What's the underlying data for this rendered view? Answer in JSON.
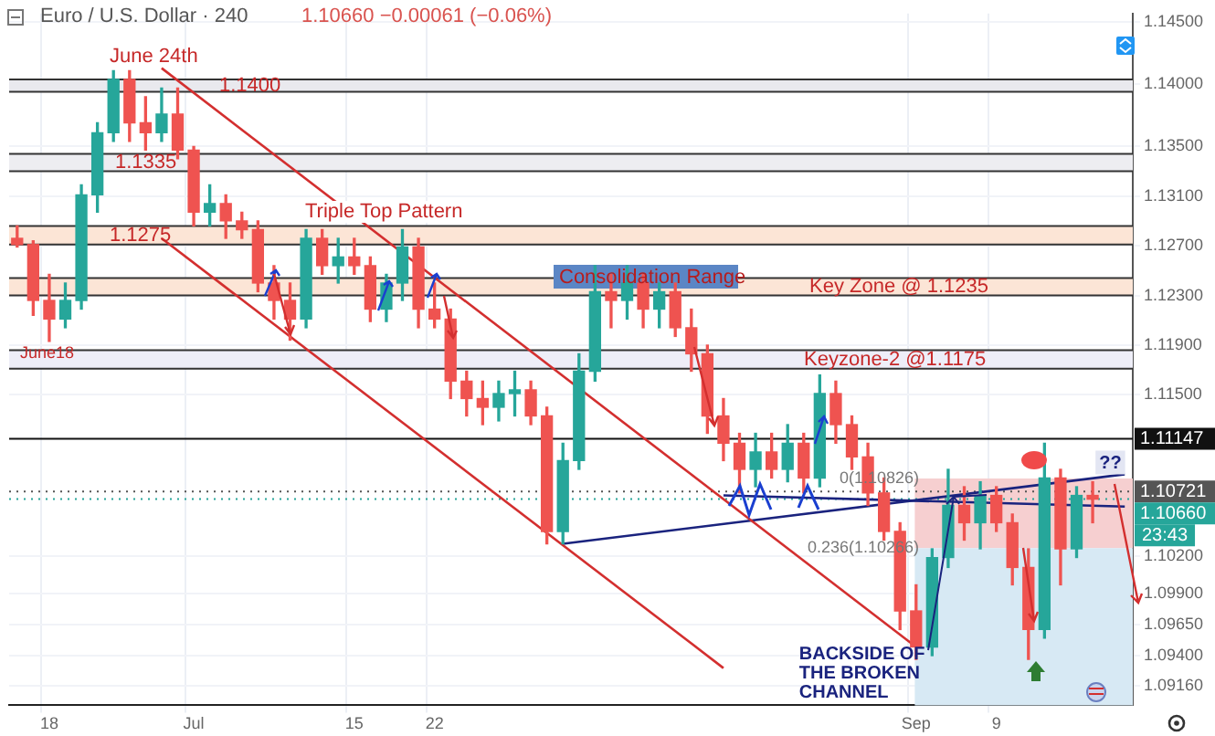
{
  "chart_data": {
    "type": "candlestick",
    "title": "Euro / U.S. Dollar · 240",
    "subtitle": "1.10660 −0.00061 (−0.06%)",
    "categories": [
      null,
      null,
      "18",
      null,
      null,
      null,
      null,
      null,
      null,
      null,
      null,
      "Jul",
      null,
      null,
      null,
      null,
      null,
      null,
      null,
      null,
      null,
      "15",
      null,
      null,
      null,
      null,
      "22",
      null,
      null,
      null,
      null,
      null,
      null,
      null,
      null,
      null,
      null,
      null,
      null,
      null,
      null,
      null,
      null,
      null,
      null,
      null,
      null,
      null,
      null,
      null,
      null,
      null,
      null,
      null,
      null,
      null,
      "Sep",
      null,
      null,
      null,
      null,
      "9",
      null,
      null,
      null,
      null,
      null,
      null,
      null,
      null
    ],
    "ohlc": [
      [
        1.1276,
        1.1286,
        1.1269,
        1.1271
      ],
      [
        1.1271,
        1.1274,
        1.1214,
        1.1226
      ],
      [
        1.1226,
        1.1247,
        1.1193,
        1.1211
      ],
      [
        1.1211,
        1.124,
        1.1204,
        1.1226
      ],
      [
        1.1226,
        1.1319,
        1.1219,
        1.1311
      ],
      [
        1.1311,
        1.1369,
        1.1297,
        1.1361
      ],
      [
        1.1361,
        1.1411,
        1.1354,
        1.1404
      ],
      [
        1.1404,
        1.1411,
        1.1354,
        1.1369
      ],
      [
        1.1369,
        1.139,
        1.1347,
        1.1361
      ],
      [
        1.1361,
        1.1397,
        1.1354,
        1.1376
      ],
      [
        1.1376,
        1.1397,
        1.134,
        1.1347
      ],
      [
        1.1347,
        1.135,
        1.1286,
        1.1297
      ],
      [
        1.1297,
        1.1319,
        1.1286,
        1.1304
      ],
      [
        1.1304,
        1.1311,
        1.1276,
        1.129
      ],
      [
        1.129,
        1.1297,
        1.1276,
        1.1283
      ],
      [
        1.1283,
        1.129,
        1.1233,
        1.124
      ],
      [
        1.124,
        1.1254,
        1.1211,
        1.1226
      ],
      [
        1.1226,
        1.124,
        1.1194,
        1.1211
      ],
      [
        1.1211,
        1.1283,
        1.1204,
        1.1276
      ],
      [
        1.1276,
        1.1283,
        1.1247,
        1.1254
      ],
      [
        1.1254,
        1.1276,
        1.124,
        1.1261
      ],
      [
        1.1261,
        1.1276,
        1.1247,
        1.1254
      ],
      [
        1.1254,
        1.1261,
        1.1209,
        1.1219
      ],
      [
        1.1219,
        1.1247,
        1.1209,
        1.124
      ],
      [
        1.124,
        1.1283,
        1.1226,
        1.1269
      ],
      [
        1.1269,
        1.1276,
        1.1204,
        1.1219
      ],
      [
        1.1219,
        1.124,
        1.1204,
        1.1211
      ],
      [
        1.1211,
        1.1219,
        1.1147,
        1.1161
      ],
      [
        1.1161,
        1.1169,
        1.1133,
        1.1147
      ],
      [
        1.1147,
        1.1161,
        1.1126,
        1.114
      ],
      [
        1.114,
        1.1161,
        1.1129,
        1.1151
      ],
      [
        1.1151,
        1.1169,
        1.1133,
        1.1154
      ],
      [
        1.1154,
        1.1161,
        1.1126,
        1.1133
      ],
      [
        1.1133,
        1.114,
        1.103,
        1.104
      ],
      [
        1.104,
        1.1111,
        1.103,
        1.1097
      ],
      [
        1.1097,
        1.1183,
        1.109,
        1.1169
      ],
      [
        1.1169,
        1.1254,
        1.1161,
        1.1233
      ],
      [
        1.1233,
        1.1247,
        1.1204,
        1.1226
      ],
      [
        1.1226,
        1.1254,
        1.1211,
        1.124
      ],
      [
        1.124,
        1.1247,
        1.1204,
        1.1219
      ],
      [
        1.1219,
        1.124,
        1.1204,
        1.1233
      ],
      [
        1.1233,
        1.124,
        1.1197,
        1.1204
      ],
      [
        1.1204,
        1.1219,
        1.1169,
        1.1183
      ],
      [
        1.1183,
        1.119,
        1.1119,
        1.1133
      ],
      [
        1.1133,
        1.1147,
        1.1097,
        1.1111
      ],
      [
        1.1111,
        1.1119,
        1.1071,
        1.109
      ],
      [
        1.109,
        1.1119,
        1.1076,
        1.1104
      ],
      [
        1.1104,
        1.1119,
        1.1083,
        1.109
      ],
      [
        1.109,
        1.1126,
        1.108,
        1.1111
      ],
      [
        1.1111,
        1.1119,
        1.1071,
        1.1083
      ],
      [
        1.1083,
        1.1166,
        1.1076,
        1.1151
      ],
      [
        1.1151,
        1.1161,
        1.1111,
        1.1126
      ],
      [
        1.1126,
        1.1133,
        1.109,
        1.11
      ],
      [
        1.11,
        1.1111,
        1.1061,
        1.1071
      ],
      [
        1.1071,
        1.1083,
        1.1033,
        1.104
      ],
      [
        1.104,
        1.1047,
        1.0961,
        1.0976
      ],
      [
        1.0976,
        1.0997,
        1.0937,
        1.0947
      ],
      [
        1.0947,
        1.1026,
        1.094,
        1.1019
      ],
      [
        1.1019,
        1.109,
        1.1011,
        1.1061
      ],
      [
        1.1061,
        1.1076,
        1.1033,
        1.1047
      ],
      [
        1.1047,
        1.108,
        1.1026,
        1.1069
      ],
      [
        1.1069,
        1.1076,
        1.104,
        1.1047
      ],
      [
        1.1047,
        1.1054,
        1.0997,
        1.1011
      ],
      [
        1.1011,
        1.1026,
        1.0937,
        1.0961
      ],
      [
        1.0961,
        1.1111,
        1.0954,
        1.1083
      ],
      [
        1.1083,
        1.109,
        1.0997,
        1.1026
      ],
      [
        1.1026,
        1.1076,
        1.1019,
        1.1069
      ],
      [
        1.1069,
        1.108,
        1.1047,
        1.1066
      ],
      null,
      null
    ],
    "series": [
      {
        "type": "line",
        "color": "#d32f2f",
        "values": [
          null,
          null,
          null,
          null,
          null,
          null,
          null,
          null,
          null,
          1.1413,
          null,
          null,
          null,
          null,
          null,
          null,
          null,
          null,
          null,
          null,
          null,
          null,
          null,
          null,
          null,
          null,
          null,
          null,
          null,
          null,
          null,
          null,
          null,
          null,
          null,
          null,
          null,
          null,
          null,
          null,
          null,
          null,
          null,
          null,
          null,
          null,
          null,
          null,
          null,
          null,
          null,
          null,
          null,
          null,
          null,
          null,
          1.0947,
          null,
          null,
          null,
          null,
          null,
          null,
          null,
          null,
          null,
          null,
          null,
          null,
          null
        ]
      },
      {
        "type": "line",
        "color": "#d32f2f",
        "values": [
          null,
          null,
          null,
          null,
          null,
          null,
          null,
          null,
          null,
          1.1276,
          null,
          null,
          null,
          null,
          null,
          null,
          null,
          null,
          null,
          null,
          null,
          null,
          null,
          null,
          null,
          null,
          null,
          null,
          null,
          null,
          null,
          null,
          null,
          null,
          null,
          null,
          null,
          null,
          null,
          null,
          null,
          null,
          null,
          null,
          1.093,
          null,
          null,
          null,
          null,
          null,
          null,
          null,
          null,
          null,
          null,
          null,
          null,
          null,
          null,
          null,
          null,
          null,
          null,
          null,
          null,
          null,
          null,
          null,
          null,
          null
        ]
      },
      {
        "type": "line",
        "color": "#1a237e",
        "values": [
          null,
          null,
          null,
          null,
          null,
          null,
          null,
          null,
          null,
          null,
          null,
          null,
          null,
          null,
          null,
          null,
          null,
          null,
          null,
          null,
          null,
          null,
          null,
          null,
          null,
          null,
          null,
          null,
          null,
          null,
          null,
          null,
          null,
          null,
          1.103,
          null,
          null,
          null,
          null,
          null,
          null,
          null,
          null,
          null,
          null,
          null,
          null,
          null,
          null,
          null,
          null,
          null,
          null,
          null,
          null,
          null,
          null,
          null,
          null,
          null,
          null,
          null,
          null,
          null,
          null,
          null,
          null,
          null,
          null,
          1.1086
        ]
      },
      {
        "type": "line",
        "color": "#1a237e",
        "values": [
          null,
          null,
          null,
          null,
          null,
          null,
          null,
          null,
          null,
          null,
          null,
          null,
          null,
          null,
          null,
          null,
          null,
          null,
          null,
          null,
          null,
          null,
          null,
          null,
          null,
          null,
          null,
          null,
          null,
          null,
          null,
          null,
          null,
          null,
          null,
          null,
          null,
          null,
          null,
          null,
          null,
          null,
          null,
          null,
          1.1069,
          null,
          null,
          null,
          null,
          null,
          null,
          null,
          null,
          null,
          null,
          null,
          null,
          null,
          null,
          null,
          null,
          null,
          null,
          null,
          null,
          null,
          null,
          null,
          null,
          1.106
        ]
      }
    ],
    "ylim": [
      1.09,
      1.1457
    ],
    "yticks": [
      {
        "value": 1.145,
        "label": "1.14500"
      },
      {
        "value": 1.14,
        "label": "1.14000"
      },
      {
        "value": 1.135,
        "label": "1.13500"
      },
      {
        "value": 1.131,
        "label": "1.13100"
      },
      {
        "value": 1.127,
        "label": "1.12700"
      },
      {
        "value": 1.123,
        "label": "1.12300"
      },
      {
        "value": 1.119,
        "label": "1.11900"
      },
      {
        "value": 1.115,
        "label": "1.11500"
      },
      {
        "value": 1.102,
        "label": "1.10200"
      },
      {
        "value": 1.099,
        "label": "1.09900"
      },
      {
        "value": 1.0965,
        "label": "1.09650"
      },
      {
        "value": 1.094,
        "label": "1.09400"
      },
      {
        "value": 1.0916,
        "label": "1.09160"
      }
    ],
    "grid": true,
    "bands": [
      {
        "axis": "y",
        "from": 1.1394,
        "to": 1.1404,
        "label": "1.1400",
        "color": "#e9e9ee"
      },
      {
        "axis": "y",
        "from": 1.133,
        "to": 1.1344,
        "label": "1.1335",
        "color": "#ededf1"
      },
      {
        "axis": "y",
        "from": 1.1271,
        "to": 1.1286,
        "label": "1.1275",
        "color": "#fce5d6"
      },
      {
        "axis": "y",
        "from": 1.123,
        "to": 1.1244,
        "label": "Key Zone @ 1.1235",
        "color": "#fce5d6"
      },
      {
        "axis": "y",
        "from": 1.1171,
        "to": 1.1186,
        "label": "Keyzone-2 @1.1175",
        "color": "#eeeef8"
      },
      {
        "axis": "y",
        "from": 1.10266,
        "to": 1.10826,
        "label": "0(1.10826)",
        "color": "#f6cfd0"
      },
      {
        "axis": "y",
        "from": 1.09,
        "to": 1.10266,
        "label": "0.236(1.10266)",
        "color": "#d7e9f4"
      }
    ],
    "ref_lines": [
      {
        "axis": "y",
        "value": 1.11147,
        "label": "1.11147",
        "color": "#111111"
      },
      {
        "axis": "y",
        "value": 1.10721,
        "label": "1.10721",
        "color": "#555555"
      },
      {
        "axis": "y",
        "value": 1.1066,
        "label": "1.10660",
        "color": "#26a69a"
      }
    ],
    "annotations": [
      "June 24th",
      "Triple Top Pattern",
      "Consolidation Range",
      "June18",
      {
        "text": "BACKSIDE OF\nTHE BROKEN\nCHANNEL",
        "x": "Sep",
        "y": 1.0937
      },
      {
        "text": "??",
        "y": 1.1086
      },
      "23:43"
    ]
  }
}
